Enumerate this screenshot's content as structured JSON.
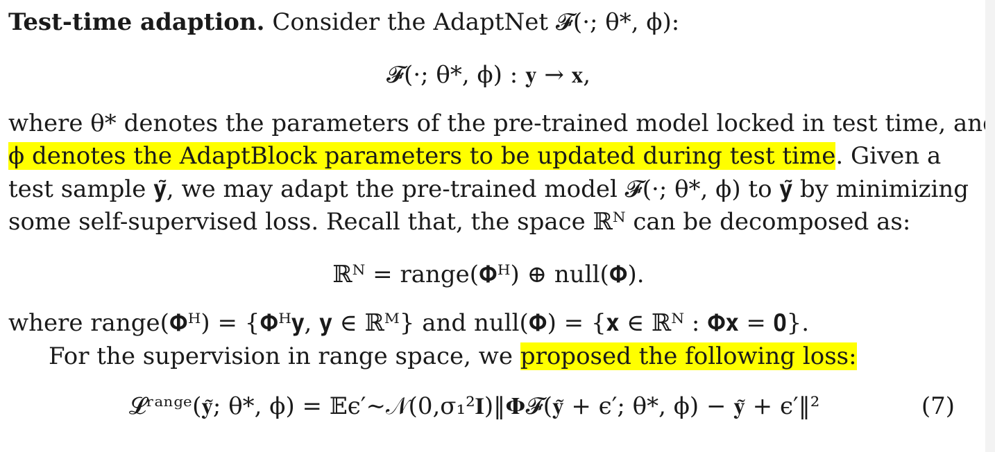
{
  "paragraph": {
    "title": "Test-time adaption.",
    "intro": " Consider the AdaptNet 𝓕(·; θ*, ϕ):"
  },
  "eq_mapping": "𝓕(·; θ*, ϕ) :    𝐲 → 𝐱,",
  "body": {
    "line1": "where θ* denotes the parameters of the pre-trained model locked in test time, and",
    "line2_highlight": "ϕ denotes the AdaptBlock parameters to be updated during test time",
    "line2_rest": ". Given a",
    "line3": "test sample 𝐲̃, we may adapt the pre-trained model 𝓕(·; θ*, ϕ) to 𝐲̃ by minimizing",
    "line4": "some self-supervised loss. Recall that, the space ℝᴺ can be decomposed as:"
  },
  "eq_decomp": "ℝᴺ = range(𝚽ᴴ) ⊕ null(𝚽).",
  "where_line": "where range(𝚽ᴴ) = {𝚽ᴴ𝐲, 𝐲 ∈ ℝᴹ} and null(𝚽) = {𝐱 ∈ ℝᴺ : 𝚽𝐱 = 𝟎}.",
  "supervision": {
    "pre": "For the supervision in range space, we ",
    "highlight": "proposed the following loss:"
  },
  "eq_loss": "𝓛ʳᵃⁿᵍᵉ(𝐲̃; θ*, ϕ) = 𝔼ϵ′∼𝒩(0,σ₁²𝐈)‖𝚽𝓕(𝐲̃ + ϵ′; θ*, ϕ) − 𝐲̃ + ϵ′‖²",
  "eq_number": "(7)",
  "colors": {
    "highlight": "#ffff00",
    "text": "#1a1a1a"
  }
}
